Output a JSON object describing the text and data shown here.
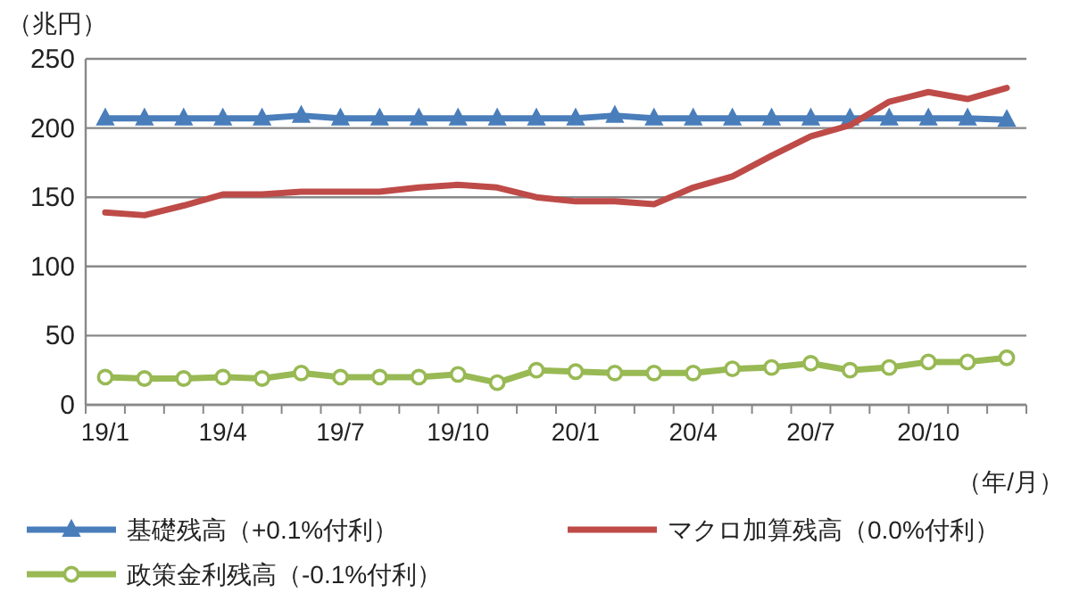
{
  "chart_data": {
    "type": "line",
    "ylabel": "（兆円）",
    "xlabel": "（年/月）",
    "categories": [
      "19/1",
      null,
      null,
      "19/4",
      null,
      null,
      "19/7",
      null,
      null,
      "19/10",
      null,
      null,
      "20/1",
      null,
      null,
      "20/4",
      null,
      null,
      "20/7",
      null,
      null,
      "20/10",
      null,
      null
    ],
    "ylim": [
      0,
      250
    ],
    "yticks": [
      0,
      50,
      100,
      150,
      200,
      250
    ],
    "grid": "y",
    "legend": "bottom",
    "series": [
      {
        "name": "基礎残高（+0.1%付利）",
        "color": "#4a7ebb",
        "marker": "triangle",
        "values": [
          207,
          207,
          207,
          207,
          207,
          209,
          207,
          207,
          207,
          207,
          207,
          207,
          207,
          209,
          207,
          207,
          207,
          207,
          207,
          207,
          207,
          207,
          207,
          206
        ]
      },
      {
        "name": "マクロ加算残高（0.0%付利）",
        "color": "#be4b48",
        "marker": "none",
        "values": [
          139,
          137,
          144,
          152,
          152,
          154,
          154,
          154,
          157,
          159,
          157,
          150,
          147,
          147,
          145,
          157,
          165,
          180,
          194,
          202,
          219,
          226,
          221,
          229
        ]
      },
      {
        "name": "政策金利残高（-0.1%付利）",
        "color": "#98b954",
        "marker": "circle",
        "values": [
          20,
          19,
          19,
          20,
          19,
          23,
          20,
          20,
          20,
          22,
          16,
          25,
          24,
          23,
          23,
          23,
          26,
          27,
          30,
          25,
          27,
          31,
          31,
          34
        ]
      }
    ]
  }
}
